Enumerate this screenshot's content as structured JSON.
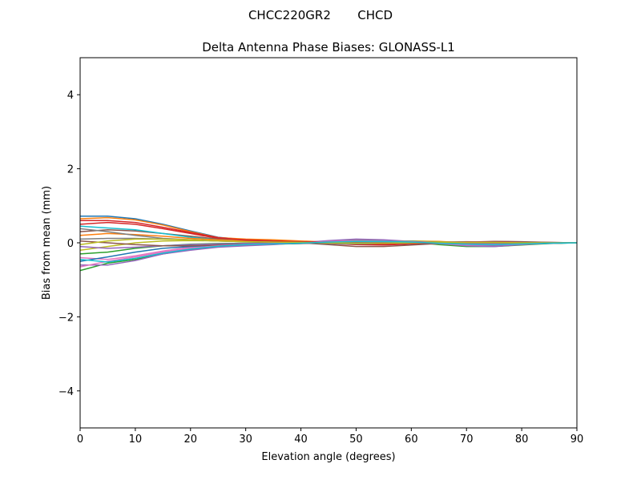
{
  "chart_data": {
    "type": "line",
    "suptitle": "CHCC220GR2       CHCD",
    "title": "Delta Antenna Phase Biases: GLONASS-L1",
    "xlabel": "Elevation angle (degrees)",
    "ylabel": "Bias from mean (mm)",
    "xlim": [
      0,
      90
    ],
    "ylim": [
      -5,
      5
    ],
    "xticks": [
      0,
      10,
      20,
      30,
      40,
      50,
      60,
      70,
      80,
      90
    ],
    "xtick_labels": [
      "0",
      "10",
      "20",
      "30",
      "40",
      "50",
      "60",
      "70",
      "80",
      "90"
    ],
    "yticks": [
      -4,
      -2,
      0,
      2,
      4
    ],
    "ytick_labels": [
      "−4",
      "−2",
      "0",
      "2",
      "4"
    ],
    "grid": false,
    "colors": [
      "#1f77b4",
      "#ff7f0e",
      "#2ca02c",
      "#d62728",
      "#9467bd",
      "#8c564b",
      "#e377c2",
      "#7f7f7f",
      "#bcbd22",
      "#17becf"
    ],
    "x": [
      0,
      5,
      10,
      15,
      20,
      25,
      30,
      35,
      40,
      45,
      50,
      55,
      60,
      65,
      70,
      75,
      80,
      85,
      90
    ],
    "series": [
      {
        "values": [
          0.72,
          0.72,
          0.65,
          0.5,
          0.32,
          0.15,
          0.08,
          0.06,
          0.03,
          0.0,
          0.05,
          0.06,
          0.03,
          -0.02,
          -0.08,
          -0.07,
          -0.04,
          -0.02,
          0
        ]
      },
      {
        "values": [
          0.65,
          0.68,
          0.62,
          0.48,
          0.3,
          0.14,
          0.1,
          0.08,
          0.05,
          0.02,
          0.0,
          0.02,
          0.05,
          0.04,
          0.0,
          -0.03,
          -0.03,
          -0.01,
          0
        ]
      },
      {
        "values": [
          -0.75,
          -0.55,
          -0.45,
          -0.3,
          -0.18,
          -0.1,
          -0.06,
          -0.04,
          -0.02,
          0.03,
          0.08,
          0.06,
          0.02,
          -0.05,
          -0.1,
          -0.1,
          -0.06,
          -0.02,
          0
        ]
      },
      {
        "values": [
          0.5,
          0.55,
          0.5,
          0.38,
          0.25,
          0.12,
          0.08,
          0.05,
          0.02,
          -0.02,
          -0.05,
          -0.06,
          -0.03,
          0.0,
          0.02,
          0.03,
          0.02,
          0.01,
          0
        ]
      },
      {
        "values": [
          -0.6,
          -0.6,
          -0.48,
          -0.3,
          -0.2,
          -0.12,
          -0.08,
          -0.05,
          0.0,
          0.06,
          0.1,
          0.08,
          0.04,
          -0.02,
          -0.08,
          -0.1,
          -0.05,
          -0.01,
          0
        ]
      },
      {
        "values": [
          0.3,
          0.35,
          0.32,
          0.25,
          0.18,
          0.1,
          0.06,
          0.04,
          0.0,
          -0.05,
          -0.1,
          -0.1,
          -0.06,
          -0.02,
          0.02,
          0.04,
          0.03,
          0.01,
          0
        ]
      },
      {
        "values": [
          -0.4,
          -0.45,
          -0.35,
          -0.22,
          -0.12,
          -0.06,
          -0.04,
          -0.02,
          0.0,
          0.04,
          0.06,
          0.05,
          0.02,
          -0.02,
          -0.06,
          -0.06,
          -0.04,
          -0.01,
          0
        ]
      },
      {
        "values": [
          0.1,
          0.12,
          0.12,
          0.1,
          0.08,
          0.05,
          0.04,
          0.02,
          0.0,
          -0.02,
          -0.03,
          -0.02,
          0.0,
          0.02,
          0.03,
          0.02,
          0.01,
          0.0,
          0
        ]
      },
      {
        "values": [
          -0.2,
          -0.1,
          0.0,
          0.05,
          0.06,
          0.05,
          0.03,
          0.02,
          0.01,
          0.0,
          0.02,
          0.04,
          0.05,
          0.03,
          0.0,
          -0.02,
          -0.02,
          -0.01,
          0
        ]
      },
      {
        "values": [
          0.45,
          0.4,
          0.35,
          0.25,
          0.15,
          0.08,
          0.05,
          0.03,
          0.01,
          0.0,
          -0.02,
          -0.03,
          -0.02,
          0.0,
          0.01,
          0.02,
          0.01,
          0.0,
          0
        ]
      },
      {
        "values": [
          -0.5,
          -0.38,
          -0.25,
          -0.15,
          -0.1,
          -0.06,
          -0.04,
          -0.03,
          -0.02,
          0.0,
          0.03,
          0.05,
          0.04,
          0.0,
          -0.04,
          -0.05,
          -0.03,
          -0.01,
          0
        ]
      },
      {
        "values": [
          0.2,
          0.25,
          0.22,
          0.18,
          0.12,
          0.08,
          0.05,
          0.04,
          0.02,
          0.0,
          -0.01,
          -0.01,
          0.0,
          0.01,
          0.01,
          0.0,
          0.0,
          0.0,
          0
        ]
      },
      {
        "values": [
          -0.3,
          -0.25,
          -0.15,
          -0.08,
          -0.04,
          -0.02,
          -0.01,
          0.0,
          0.01,
          0.02,
          0.03,
          0.03,
          0.02,
          0.0,
          -0.02,
          -0.03,
          -0.02,
          -0.01,
          0
        ]
      },
      {
        "values": [
          0.6,
          0.6,
          0.55,
          0.42,
          0.28,
          0.14,
          0.07,
          0.05,
          0.03,
          0.01,
          -0.01,
          -0.03,
          -0.02,
          0.0,
          0.02,
          0.02,
          0.01,
          0.0,
          0
        ]
      },
      {
        "values": [
          -0.1,
          -0.15,
          -0.12,
          -0.08,
          -0.05,
          -0.03,
          -0.02,
          -0.01,
          0.0,
          0.01,
          0.02,
          0.02,
          0.01,
          0.0,
          -0.01,
          -0.01,
          -0.01,
          0.0,
          0
        ]
      },
      {
        "values": [
          0.05,
          0.0,
          -0.05,
          -0.08,
          -0.08,
          -0.06,
          -0.05,
          -0.03,
          -0.02,
          0.0,
          0.02,
          0.03,
          0.02,
          0.01,
          0.0,
          -0.01,
          0.0,
          0.0,
          0
        ]
      },
      {
        "values": [
          -0.65,
          -0.5,
          -0.38,
          -0.25,
          -0.15,
          -0.08,
          -0.05,
          -0.03,
          -0.01,
          0.02,
          0.05,
          0.05,
          0.03,
          0.0,
          -0.03,
          -0.04,
          -0.03,
          -0.01,
          0
        ]
      },
      {
        "values": [
          0.38,
          0.3,
          0.2,
          0.12,
          0.08,
          0.05,
          0.03,
          0.02,
          0.01,
          0.0,
          0.0,
          0.01,
          0.01,
          0.0,
          0.0,
          0.0,
          0.0,
          0.0,
          0
        ]
      },
      {
        "values": [
          -0.05,
          0.05,
          0.1,
          0.1,
          0.08,
          0.05,
          0.03,
          0.02,
          0.01,
          0.0,
          -0.01,
          -0.01,
          0.0,
          0.01,
          0.01,
          0.01,
          0.0,
          0.0,
          0
        ]
      },
      {
        "values": [
          -0.45,
          -0.52,
          -0.42,
          -0.28,
          -0.17,
          -0.09,
          -0.05,
          -0.03,
          -0.01,
          0.02,
          0.04,
          0.04,
          0.02,
          -0.01,
          -0.04,
          -0.05,
          -0.03,
          -0.01,
          0
        ]
      }
    ]
  }
}
